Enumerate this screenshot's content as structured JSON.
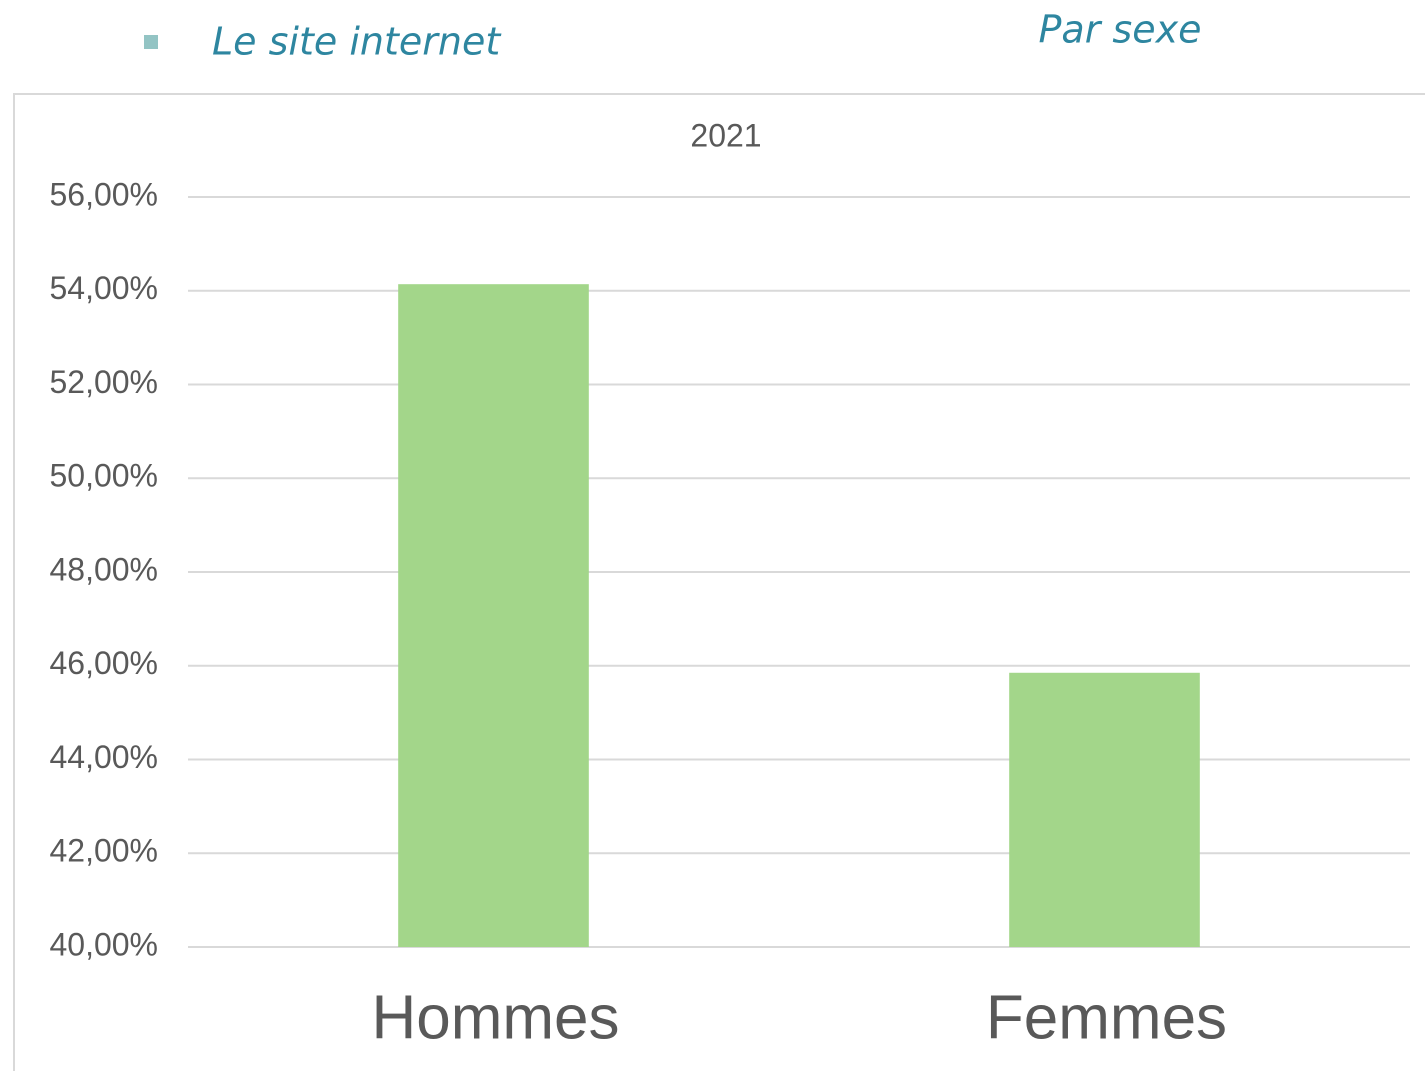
{
  "header": {
    "bullet": "Le site internet",
    "heading": "Par sexe"
  },
  "chart_data": {
    "type": "bar",
    "title": "2021",
    "categories": [
      "Hommes",
      "Femmes"
    ],
    "values": [
      54.14,
      45.85
    ],
    "color": "#a3d68a",
    "ylim": [
      40,
      56
    ],
    "yticks": [
      {
        "value": 40,
        "label": "40,00%"
      },
      {
        "value": 42,
        "label": "42,00%"
      },
      {
        "value": 44,
        "label": "44,00%"
      },
      {
        "value": 46,
        "label": "46,00%"
      },
      {
        "value": 48,
        "label": "48,00%"
      },
      {
        "value": 50,
        "label": "50,00%"
      },
      {
        "value": 52,
        "label": "52,00%"
      },
      {
        "value": 54,
        "label": "54,00%"
      },
      {
        "value": 56,
        "label": "56,00%"
      }
    ],
    "grid": true
  }
}
